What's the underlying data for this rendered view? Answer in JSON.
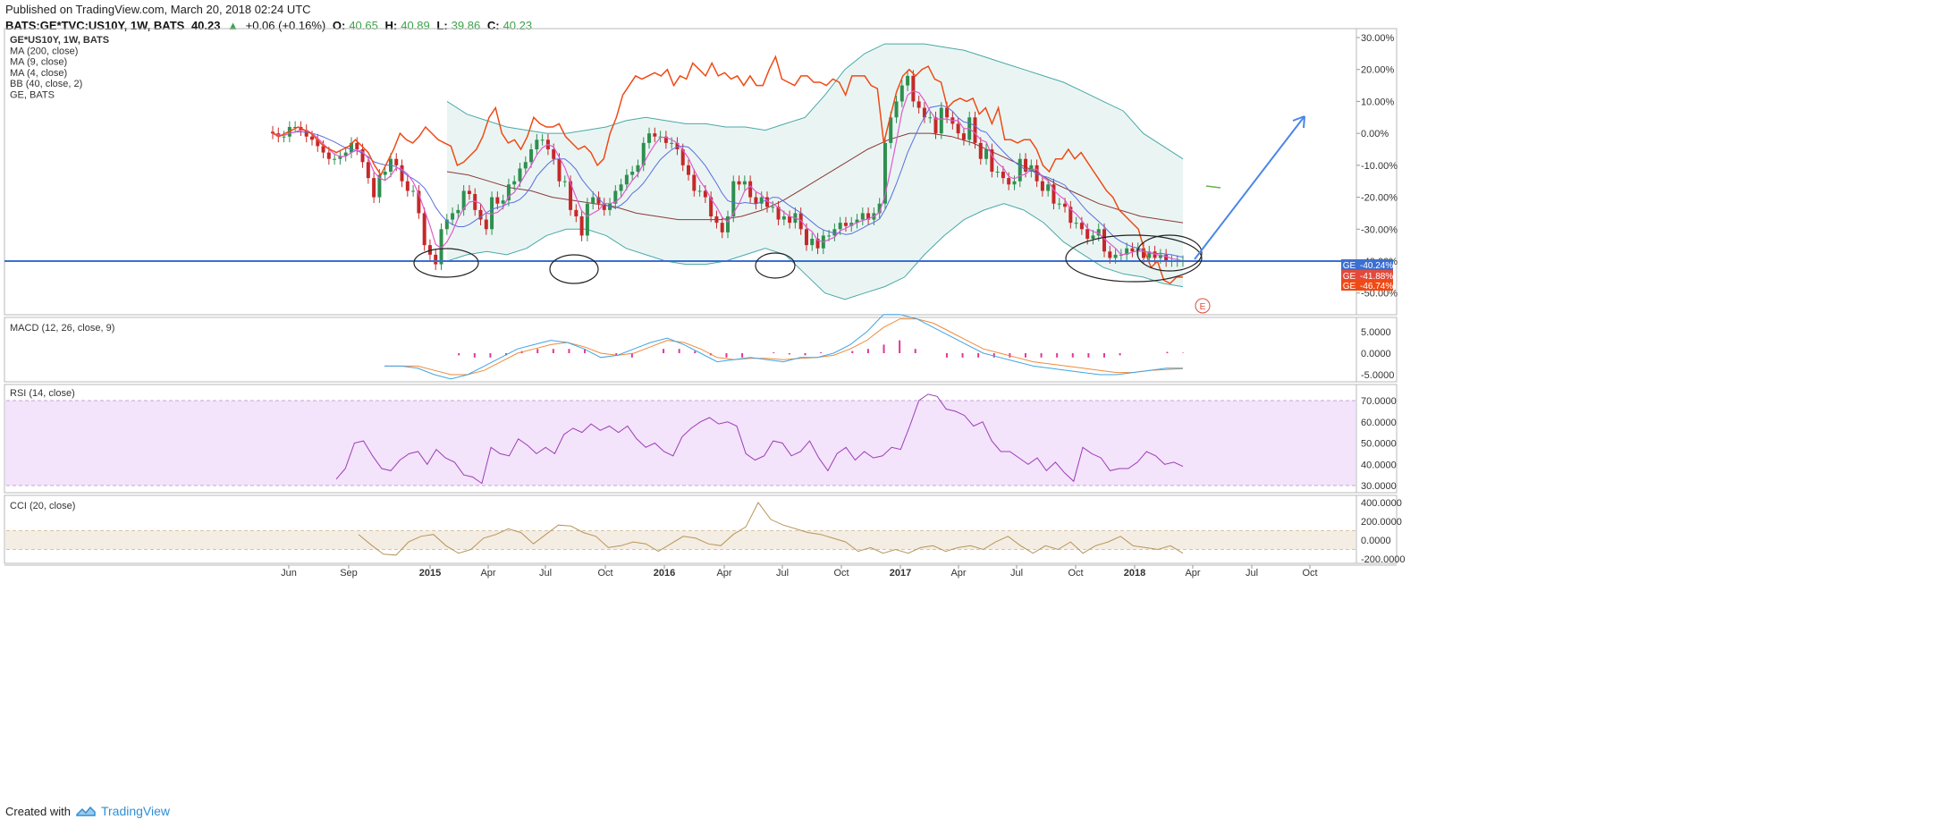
{
  "header": {
    "published": "Published on TradingView.com, March 20, 2018 02:24 UTC",
    "symbol": "BATS:GE*TVC:US10Y, 1W, BATS",
    "last": "40.23",
    "change": "+0.06 (+0.16%)",
    "o_label": "O:",
    "o": "40.65",
    "h_label": "H:",
    "h": "40.89",
    "l_label": "L:",
    "l": "39.86",
    "c_label": "C:",
    "c": "40.23"
  },
  "legend": [
    "GE*US10Y, 1W, BATS",
    "MA (200, close)",
    "MA (9, close)",
    "MA (4, close)",
    "BB (40, close, 2)",
    "GE, BATS"
  ],
  "indicator_titles": {
    "macd": "MACD (12, 26, close, 9)",
    "rsi": "RSI (14, close)",
    "cci": "CCI (20, close)"
  },
  "footer": {
    "created_with": "Created with",
    "brand": "TradingView"
  },
  "colors": {
    "ratio_candle_up": "#2e8f4f",
    "ratio_candle_down": "#c62828",
    "ge_line": "#ef4a16",
    "ma200": "#8b3a3a",
    "ma9": "#5b6ee0",
    "ma4": "#e05ad0",
    "bb": "#4aa8a8",
    "bb_fill": "#e6f3f1",
    "horizontal_line": "#3b6fd1",
    "arrow": "#4a86e8",
    "rsi_line": "#9b3fb4",
    "rsi_band": "#f3e3fb",
    "cci_line": "#b8955a",
    "cci_band": "#f4ede3",
    "macd_line": "#3fa4e6",
    "macd_signal": "#f08a3a",
    "macd_hist": "#e0369a"
  },
  "badges": [
    {
      "tag": "GE",
      "value": "-40.24%",
      "color": "#3b6fd1"
    },
    {
      "tag": "GE",
      "value": "-41.88%",
      "color": "#e24a3b"
    },
    {
      "tag": "GE",
      "value": "-46.74%",
      "color": "#ef4a16"
    }
  ],
  "earnings_marker": "E",
  "chart_data": [
    {
      "type": "line",
      "title": "GE*US10Y, 1W, BATS",
      "y_axis": {
        "ticks": [
          "30.00%",
          "20.00%",
          "10.00%",
          "0.00%",
          "-10.00%",
          "-20.00%",
          "-30.00%",
          "-40.00%",
          "-50.00%"
        ],
        "range": [
          -55,
          32
        ]
      },
      "x_axis": {
        "ticks": [
          "Jun",
          "Sep",
          "2015",
          "Apr",
          "Jul",
          "Oct",
          "2016",
          "Apr",
          "Jul",
          "Oct",
          "2017",
          "Apr",
          "Jul",
          "Oct",
          "2018",
          "Apr",
          "Jul",
          "Oct"
        ]
      },
      "horizontal_line": -40,
      "series": [
        {
          "name": "GE*US10Y",
          "values": [
            0,
            -1,
            -1,
            2,
            2,
            1,
            -1,
            -2,
            -4,
            -6,
            -8,
            -8,
            -7,
            -6,
            -3,
            -5,
            -9,
            -14,
            -20,
            -13,
            -12,
            -8,
            -10,
            -15,
            -18,
            -18,
            -25,
            -35,
            -38,
            -41,
            -30,
            -27,
            -25,
            -24,
            -18,
            -19,
            -24,
            -27,
            -30,
            -20,
            -22,
            -21,
            -16,
            -15,
            -11,
            -9,
            -5,
            -2,
            -2,
            -5,
            -8,
            -15,
            -15,
            -24,
            -26,
            -32,
            -22,
            -20,
            -22,
            -24,
            -22,
            -18,
            -16,
            -13,
            -12,
            -10,
            -3,
            0,
            -1,
            -1,
            -3,
            -3,
            -5,
            -10,
            -13,
            -18,
            -18,
            -20,
            -26,
            -28,
            -31,
            -26,
            -15,
            -16,
            -15,
            -20,
            -22,
            -20,
            -23,
            -23,
            -27,
            -26,
            -28,
            -25,
            -30,
            -35,
            -33,
            -36,
            -32,
            -32,
            -30,
            -28,
            -29,
            -28,
            -27,
            -25,
            -27,
            -25,
            -22,
            -3,
            5,
            10,
            15,
            18,
            10,
            8,
            5,
            5,
            0,
            8,
            5,
            3,
            0,
            -2,
            5,
            -3,
            -8,
            -5,
            -12,
            -12,
            -14,
            -16,
            -15,
            -8,
            -12,
            -10,
            -15,
            -18,
            -16,
            -22,
            -22,
            -23,
            -28,
            -28,
            -30,
            -33,
            -32,
            -30,
            -37,
            -39,
            -38,
            -38,
            -36,
            -37,
            -36,
            -39,
            -37,
            -39,
            -38,
            -40,
            -40,
            -40,
            -40
          ]
        },
        {
          "name": "GE, BATS",
          "values": [
            0,
            -1,
            0,
            1,
            2,
            1,
            0,
            -2,
            -4,
            -5,
            -6,
            -5,
            -4,
            -2,
            -4,
            -6,
            -10,
            -13,
            -9,
            -5,
            0,
            -2,
            -3,
            -1,
            2,
            0,
            -2,
            -3,
            -4,
            -10,
            -9,
            -7,
            -5,
            -1,
            5,
            8,
            0,
            -3,
            -2,
            -5,
            -1,
            5,
            3,
            2,
            2,
            3,
            -1,
            -3,
            -5,
            -4,
            -6,
            -10,
            -8,
            0,
            5,
            12,
            15,
            18,
            17,
            18,
            19,
            18,
            20,
            15,
            18,
            17,
            22,
            20,
            18,
            22,
            18,
            19,
            17,
            18,
            15,
            18,
            15,
            15,
            20,
            24,
            17,
            16,
            15,
            18,
            18,
            16,
            16,
            15,
            17,
            16,
            12,
            18,
            18,
            18,
            15,
            14,
            -3,
            5,
            13,
            18,
            20,
            18,
            20,
            21,
            17,
            16,
            8,
            10,
            11,
            10,
            11,
            6,
            8,
            3,
            8,
            -2,
            -2,
            -3,
            -2,
            -2,
            -5,
            -10,
            -12,
            -8,
            -8,
            -5,
            -8,
            -6,
            -9,
            -12,
            -15,
            -18,
            -20,
            -24,
            -26,
            -28,
            -30,
            -37,
            -42,
            -40,
            -46,
            -47,
            -45,
            -45
          ]
        },
        {
          "name": "MA (200, close)",
          "values": [
            -12,
            -13,
            -15,
            -17,
            -18,
            -20,
            -21,
            -22,
            -23,
            -25,
            -26,
            -27,
            -27,
            -27,
            -26,
            -24,
            -21,
            -17,
            -13,
            -9,
            -5,
            -2,
            0,
            0,
            -1,
            -3,
            -6,
            -9,
            -12,
            -16,
            -19,
            -22,
            -24,
            -26,
            -27,
            -28
          ]
        },
        {
          "name": "BB upper (40, close, 2)",
          "values": [
            10,
            6,
            4,
            2,
            1,
            0,
            0,
            1,
            2,
            4,
            5,
            4,
            3,
            3,
            2,
            2,
            1,
            3,
            5,
            12,
            20,
            25,
            28,
            28,
            28,
            27,
            26,
            24,
            22,
            20,
            18,
            16,
            13,
            10,
            7,
            0,
            -4,
            -8
          ]
        },
        {
          "name": "BB lower (40, close, 2)",
          "values": [
            -40,
            -38,
            -37,
            -38,
            -36,
            -32,
            -30,
            -30,
            -32,
            -36,
            -38,
            -40,
            -41,
            -41,
            -40,
            -38,
            -36,
            -38,
            -44,
            -50,
            -52,
            -50,
            -48,
            -45,
            -38,
            -32,
            -27,
            -24,
            -22,
            -24,
            -28,
            -34,
            -38,
            -42,
            -44,
            -45,
            -47,
            -48
          ]
        }
      ]
    },
    {
      "type": "line",
      "title": "MACD (12, 26, close, 9)",
      "y_axis": {
        "ticks": [
          "5.0000",
          "0.0000",
          "-5.0000"
        ]
      },
      "series": [
        {
          "name": "MACD",
          "values": [
            -3,
            -3,
            -3.5,
            -5,
            -6,
            -5,
            -3,
            -1,
            1,
            2,
            3,
            2.5,
            1,
            -1,
            -0.5,
            1,
            2.5,
            3.5,
            2,
            0,
            -2,
            -1.5,
            -1,
            -1.5,
            -2,
            -1,
            -1,
            0,
            2,
            5,
            9,
            9,
            8,
            6,
            4,
            2,
            0,
            -1,
            -2,
            -3,
            -3.5,
            -4,
            -4.5,
            -5,
            -5,
            -4.5,
            -4,
            -3.5,
            -3.5
          ]
        },
        {
          "name": "Signal",
          "values": [
            -3,
            -3,
            -3,
            -4,
            -5,
            -5,
            -4,
            -2,
            0,
            1,
            2,
            2.5,
            1.5,
            0,
            -0.5,
            0,
            1.5,
            3,
            2.5,
            1,
            -1,
            -1.5,
            -1.2,
            -1.2,
            -1.5,
            -1.2,
            -1,
            -0.5,
            1,
            3,
            6,
            8,
            8,
            7,
            5,
            3,
            1,
            0,
            -1,
            -2,
            -2.5,
            -3,
            -3.5,
            -4,
            -4.5,
            -4.5,
            -4,
            -3.8,
            -3.6
          ]
        },
        {
          "name": "Histogram",
          "values": [
            0,
            0,
            -0.5,
            -1,
            -1,
            -0.5,
            0.5,
            1,
            1,
            1,
            1,
            0,
            -0.5,
            -1,
            0,
            1,
            1,
            0.5,
            -0.5,
            -1,
            -1,
            0,
            0.2,
            -0.3,
            -0.5,
            0.2,
            0,
            0.5,
            1,
            2,
            3,
            1,
            0,
            -1,
            -1,
            -1,
            -1,
            -1,
            -1,
            -1,
            -1,
            -1,
            -1,
            -1,
            -0.5,
            0,
            0,
            0.3,
            0.1
          ]
        }
      ]
    },
    {
      "type": "line",
      "title": "RSI (14, close)",
      "y_axis": {
        "ticks": [
          "70.0000",
          "60.0000",
          "50.0000",
          "40.0000",
          "30.0000"
        ],
        "range": [
          28,
          78
        ]
      },
      "series": [
        {
          "name": "RSI",
          "values": [
            33,
            38,
            50,
            51,
            44,
            38,
            37,
            42,
            45,
            46,
            40,
            47,
            43,
            41,
            35,
            34,
            31,
            48,
            45,
            44,
            52,
            49,
            45,
            48,
            45,
            54,
            57,
            55,
            59,
            56,
            58,
            55,
            58,
            52,
            48,
            50,
            46,
            44,
            53,
            57,
            60,
            62,
            59,
            60,
            58,
            45,
            42,
            44,
            51,
            50,
            44,
            46,
            51,
            43,
            37,
            45,
            48,
            42,
            46,
            43,
            44,
            48,
            47,
            58,
            70,
            73,
            72,
            66,
            65,
            63,
            58,
            60,
            51,
            46,
            46,
            43,
            40,
            43,
            37,
            41,
            36,
            32,
            48,
            45,
            43,
            37,
            38,
            38,
            41,
            46,
            44,
            40,
            41,
            39
          ]
        }
      ]
    },
    {
      "type": "line",
      "title": "CCI (20, close)",
      "y_axis": {
        "ticks": [
          "400.0000",
          "200.0000",
          "0.0000",
          "-200.0000"
        ],
        "range": [
          -260,
          440
        ]
      },
      "series": [
        {
          "name": "CCI",
          "values": [
            60,
            -50,
            -150,
            -160,
            -20,
            40,
            60,
            -60,
            -140,
            -100,
            20,
            60,
            120,
            80,
            -40,
            60,
            160,
            150,
            80,
            40,
            -80,
            -60,
            -20,
            -40,
            -120,
            -40,
            40,
            20,
            -40,
            -60,
            60,
            140,
            400,
            220,
            160,
            120,
            80,
            60,
            20,
            -20,
            -120,
            -80,
            -140,
            -100,
            -140,
            -80,
            -60,
            -120,
            -80,
            -60,
            -100,
            -20,
            40,
            -60,
            -140,
            -60,
            -100,
            -20,
            -140,
            -60,
            -20,
            40,
            -60,
            -80,
            -100,
            -60,
            -140
          ]
        }
      ]
    }
  ]
}
